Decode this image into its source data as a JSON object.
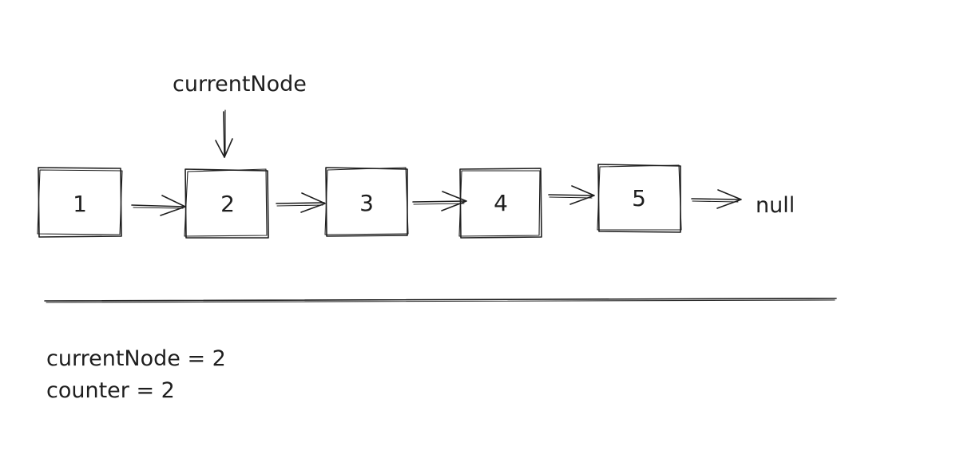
{
  "pointer": {
    "label": "currentNode"
  },
  "nodes": [
    "1",
    "2",
    "3",
    "4",
    "5"
  ],
  "tail": {
    "label": "null"
  },
  "state": {
    "line1": "currentNode = 2",
    "line2": "counter = 2"
  }
}
